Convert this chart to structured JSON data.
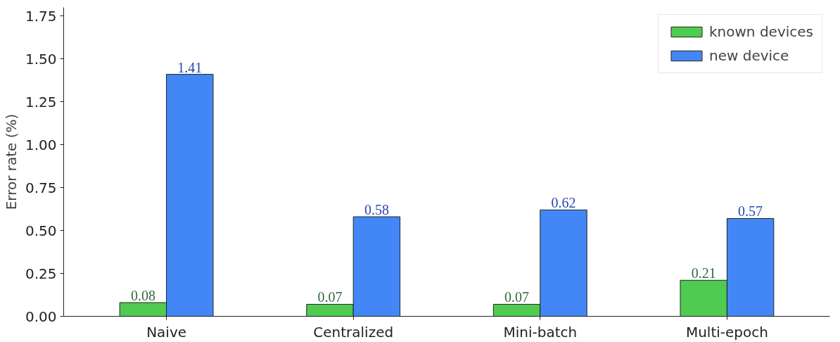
{
  "chart_data": {
    "type": "bar",
    "ylabel": "Error rate (%)",
    "categories": [
      "Naive",
      "Centralized",
      "Mini-batch",
      "Multi-epoch"
    ],
    "series": [
      {
        "name": "known devices",
        "color": "#4ecb50",
        "values": [
          0.08,
          0.07,
          0.07,
          0.21
        ]
      },
      {
        "name": "new device",
        "color": "#4287f5",
        "values": [
          1.41,
          0.58,
          0.62,
          0.57
        ]
      }
    ],
    "ylim": [
      0,
      1.8
    ],
    "yticks": [
      {
        "value": 0,
        "label": "0.00"
      },
      {
        "value": 0.25,
        "label": "0.25"
      },
      {
        "value": 0.5,
        "label": "0.50"
      },
      {
        "value": 0.75,
        "label": "0.75"
      },
      {
        "value": 1.0,
        "label": "1.00"
      },
      {
        "value": 1.25,
        "label": "1.25"
      },
      {
        "value": 1.5,
        "label": "1.50"
      },
      {
        "value": 1.75,
        "label": "1.75"
      }
    ],
    "data_labels": true,
    "grid": false,
    "legend": "top right"
  }
}
